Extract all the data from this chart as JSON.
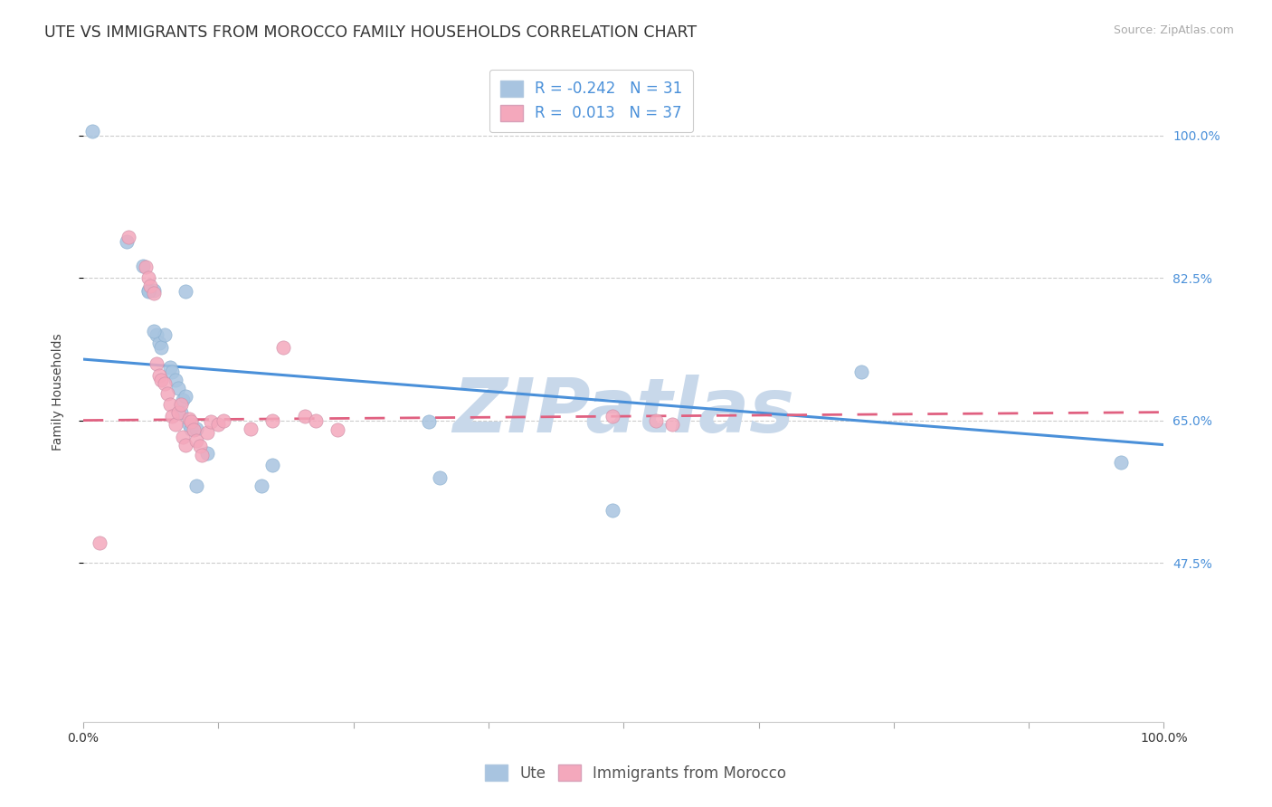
{
  "title": "UTE VS IMMIGRANTS FROM MOROCCO FAMILY HOUSEHOLDS CORRELATION CHART",
  "source": "Source: ZipAtlas.com",
  "ylabel": "Family Households",
  "ytick_vals": [
    0.475,
    0.65,
    0.825,
    1.0
  ],
  "ytick_labels": [
    "47.5%",
    "65.0%",
    "82.5%",
    "100.0%"
  ],
  "xmin": 0.0,
  "xmax": 1.0,
  "ymin": 0.28,
  "ymax": 1.09,
  "legend_r_ute": "-0.242",
  "legend_n_ute": "31",
  "legend_r_morocco": "0.013",
  "legend_n_morocco": "37",
  "ute_color": "#a8c4e0",
  "morocco_color": "#f4a8bc",
  "trendline_ute_color": "#4a90d9",
  "trendline_morocco_color": "#e06080",
  "watermark": "ZIPatlas",
  "watermark_color": "#c8d8ea",
  "ute_x": [
    0.008,
    0.04,
    0.055,
    0.06,
    0.065,
    0.068,
    0.07,
    0.072,
    0.075,
    0.08,
    0.082,
    0.085,
    0.088,
    0.09,
    0.092,
    0.095,
    0.098,
    0.1,
    0.105,
    0.115,
    0.165,
    0.175,
    0.32,
    0.33,
    0.49,
    0.72,
    0.96,
    0.06,
    0.065,
    0.095,
    0.105
  ],
  "ute_y": [
    1.005,
    0.87,
    0.84,
    0.81,
    0.81,
    0.755,
    0.745,
    0.74,
    0.755,
    0.715,
    0.71,
    0.7,
    0.69,
    0.66,
    0.675,
    0.68,
    0.645,
    0.64,
    0.64,
    0.61,
    0.57,
    0.595,
    0.648,
    0.58,
    0.54,
    0.71,
    0.598,
    0.808,
    0.76,
    0.808,
    0.57
  ],
  "morocco_x": [
    0.015,
    0.042,
    0.058,
    0.06,
    0.062,
    0.065,
    0.068,
    0.07,
    0.072,
    0.075,
    0.078,
    0.08,
    0.082,
    0.085,
    0.088,
    0.09,
    0.092,
    0.095,
    0.098,
    0.1,
    0.102,
    0.105,
    0.108,
    0.11,
    0.115,
    0.118,
    0.125,
    0.13,
    0.155,
    0.175,
    0.185,
    0.205,
    0.215,
    0.235,
    0.49,
    0.53,
    0.545
  ],
  "morocco_y": [
    0.5,
    0.875,
    0.838,
    0.825,
    0.815,
    0.806,
    0.72,
    0.705,
    0.7,
    0.695,
    0.683,
    0.67,
    0.655,
    0.645,
    0.66,
    0.67,
    0.63,
    0.62,
    0.652,
    0.648,
    0.638,
    0.625,
    0.618,
    0.607,
    0.635,
    0.648,
    0.645,
    0.65,
    0.64,
    0.65,
    0.74,
    0.655,
    0.65,
    0.638,
    0.655,
    0.65,
    0.645
  ],
  "background_color": "#ffffff",
  "grid_color": "#cccccc",
  "title_fontsize": 12.5,
  "label_fontsize": 10,
  "tick_fontsize": 10,
  "legend_fontsize": 12,
  "watermark_fontsize": 60,
  "source_fontsize": 9
}
